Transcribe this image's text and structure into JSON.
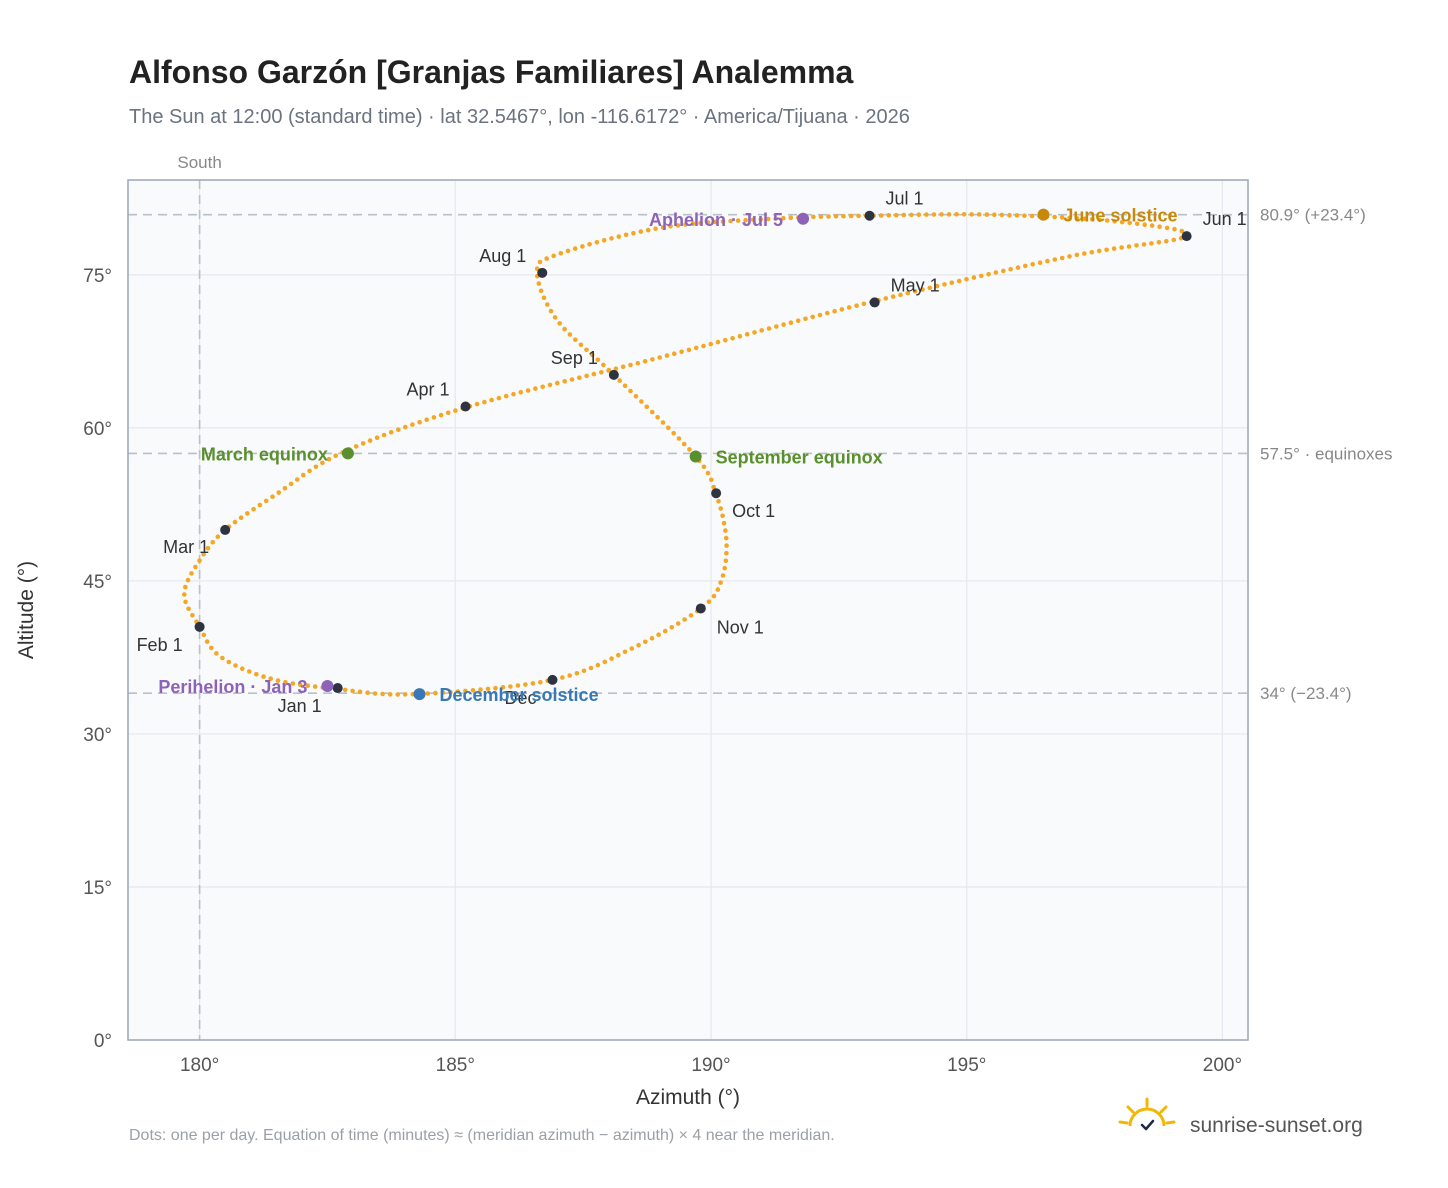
{
  "title": "Alfonso Garzón [Granjas Familiares] Analemma",
  "subtitle": "The Sun at 12:00 (standard time) · lat 32.5467°, lon -116.6172° · America/Tijuana · 2026",
  "footer_note": "Dots: one per day. Equation of time (minutes) ≈ (meridian azimuth − azimuth) × 4 near the meridian.",
  "brand": {
    "name": "sunrise-sunset.org",
    "logo_icon": "sun-logo-icon"
  },
  "colors": {
    "path": "#f5a623",
    "month_point": "#2d3340",
    "equinox": "#5a8f2e",
    "solstice_june": "#c8890a",
    "solstice_december": "#3a78b5",
    "apsis": "#8e62b8",
    "plot_bg": "#f8fafc",
    "grid": "#e5e8ee",
    "reference_line": "#b8c0c8",
    "frame": "#9ca6b4"
  },
  "chart_data": {
    "type": "scatter",
    "xlabel": "Azimuth (°)",
    "ylabel": "Altitude (°)",
    "xlim": [
      178.6,
      200.5
    ],
    "ylim": [
      0,
      84.3
    ],
    "x_ticks": [
      180,
      185,
      190,
      195,
      200
    ],
    "x_tick_labels": [
      "180°",
      "185°",
      "190°",
      "195°",
      "200°"
    ],
    "y_ticks": [
      0,
      15,
      30,
      45,
      60,
      75
    ],
    "y_tick_labels": [
      "0°",
      "15°",
      "30°",
      "45°",
      "60°",
      "75°"
    ],
    "grid": true,
    "meridian": {
      "azimuth": 180,
      "label": "South"
    },
    "reference_lines": [
      {
        "altitude": 80.9,
        "label": "80.9° (+23.4°)"
      },
      {
        "altitude": 57.5,
        "label": "57.5° · equinoxes"
      },
      {
        "altitude": 34.0,
        "label": "34° (−23.4°)"
      }
    ],
    "analemma_path": [
      [
        182.7,
        34.4
      ],
      [
        181.4,
        35.4
      ],
      [
        180.4,
        37.6
      ],
      [
        180.0,
        40.5
      ],
      [
        179.7,
        43.7
      ],
      [
        180.0,
        47.0
      ],
      [
        180.5,
        50.0
      ],
      [
        181.5,
        53.5
      ],
      [
        182.8,
        57.6
      ],
      [
        185.2,
        62.0
      ],
      [
        189.0,
        66.9
      ],
      [
        193.1,
        72.3
      ],
      [
        197.0,
        76.8
      ],
      [
        199.3,
        78.8
      ],
      [
        198.0,
        80.2
      ],
      [
        195.5,
        80.9
      ],
      [
        193.1,
        80.8
      ],
      [
        191.2,
        80.5
      ],
      [
        189.0,
        79.6
      ],
      [
        187.0,
        77.0
      ],
      [
        186.6,
        75.2
      ],
      [
        187.0,
        70.5
      ],
      [
        188.1,
        65.2
      ],
      [
        189.7,
        57.2
      ],
      [
        190.1,
        53.5
      ],
      [
        190.3,
        49.0
      ],
      [
        190.2,
        45.0
      ],
      [
        189.8,
        42.3
      ],
      [
        188.5,
        38.5
      ],
      [
        186.9,
        35.3
      ],
      [
        184.2,
        33.9
      ],
      [
        182.7,
        34.4
      ]
    ],
    "month_points": [
      {
        "label": "Jan 1",
        "az": 182.7,
        "alt": 34.5
      },
      {
        "label": "Feb 1",
        "az": 180.0,
        "alt": 40.5
      },
      {
        "label": "Mar 1",
        "az": 180.5,
        "alt": 50.0
      },
      {
        "label": "Apr 1",
        "az": 185.2,
        "alt": 62.1
      },
      {
        "label": "May 1",
        "az": 193.2,
        "alt": 72.3
      },
      {
        "label": "Jun 1",
        "az": 199.3,
        "alt": 78.8
      },
      {
        "label": "Jul 1",
        "az": 193.1,
        "alt": 80.8
      },
      {
        "label": "Aug 1",
        "az": 186.7,
        "alt": 75.2
      },
      {
        "label": "Sep 1",
        "az": 188.1,
        "alt": 65.2
      },
      {
        "label": "Oct 1",
        "az": 190.1,
        "alt": 53.6
      },
      {
        "label": "Nov 1",
        "az": 189.8,
        "alt": 42.3
      },
      {
        "label": "Dec",
        "az": 186.9,
        "alt": 35.3
      }
    ],
    "events": [
      {
        "label": "March equinox",
        "az": 182.9,
        "alt": 57.5,
        "color": "#5a8f2e",
        "anchor": "end"
      },
      {
        "label": "June solstice",
        "az": 196.5,
        "alt": 80.9,
        "color": "#c8890a",
        "anchor": "start"
      },
      {
        "label": "September equinox",
        "az": 189.7,
        "alt": 57.2,
        "color": "#5a8f2e",
        "anchor": "start"
      },
      {
        "label": "December solstice",
        "az": 184.3,
        "alt": 33.9,
        "color": "#3a78b5",
        "anchor": "start"
      },
      {
        "label": "Perihelion · Jan 3",
        "az": 182.5,
        "alt": 34.7,
        "color": "#8e62b8",
        "anchor": "end"
      },
      {
        "label": "Aphelion · Jul 5",
        "az": 191.8,
        "alt": 80.5,
        "color": "#8e62b8",
        "anchor": "end"
      }
    ]
  }
}
